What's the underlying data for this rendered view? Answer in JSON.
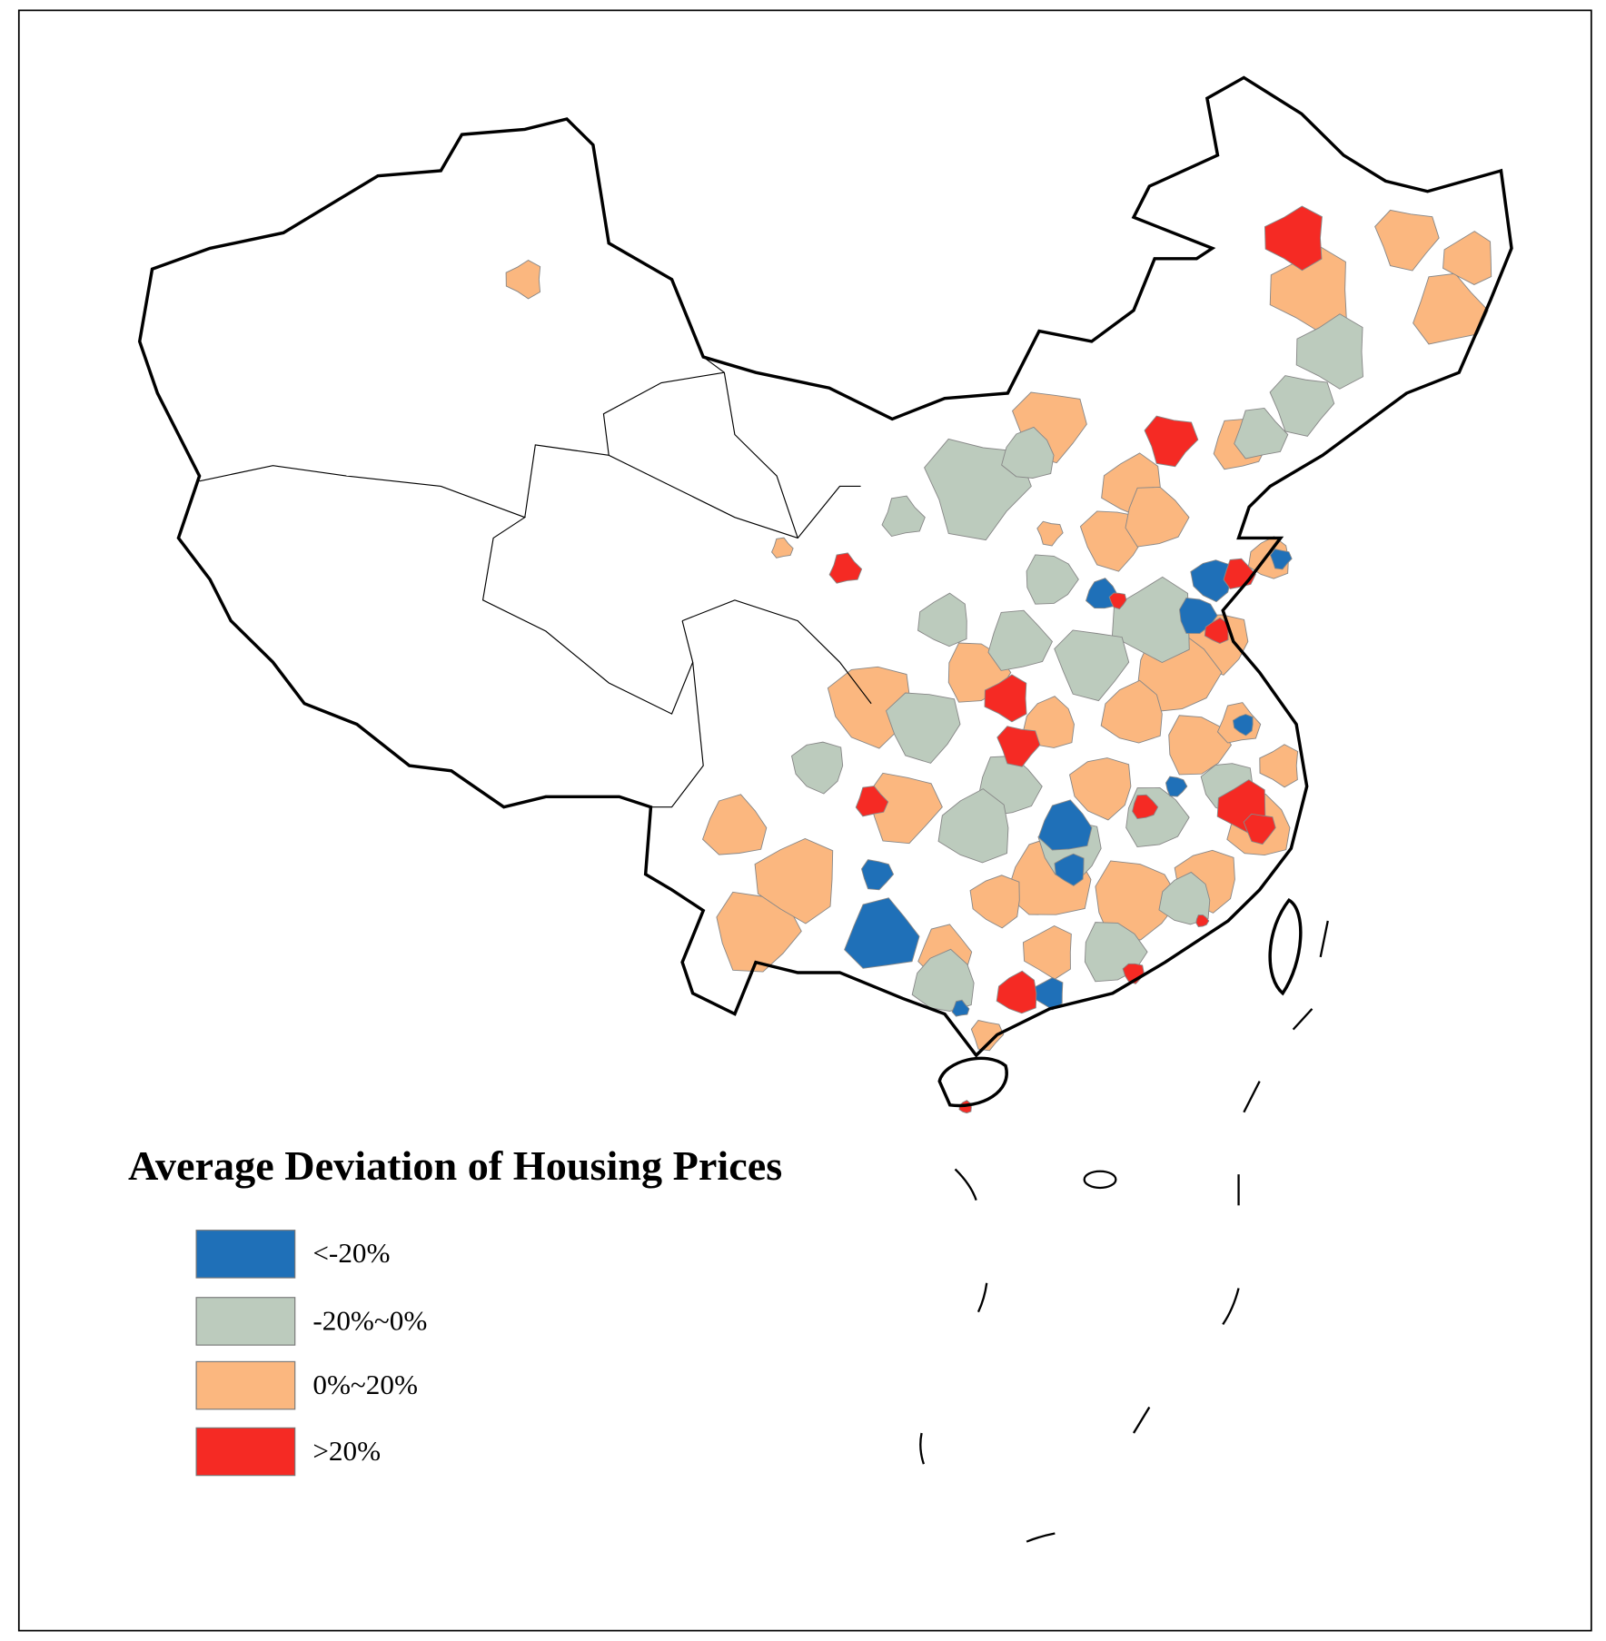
{
  "title": "Average Deviation of Housing Prices",
  "legend": [
    {
      "label": "<-20%",
      "color": "#1f70b8"
    },
    {
      "label": "-20%~0%",
      "color": "#bccbbd"
    },
    {
      "label": "0%~20%",
      "color": "#fbb77f"
    },
    {
      "label": ">20%",
      "color": "#f52a24"
    }
  ]
}
